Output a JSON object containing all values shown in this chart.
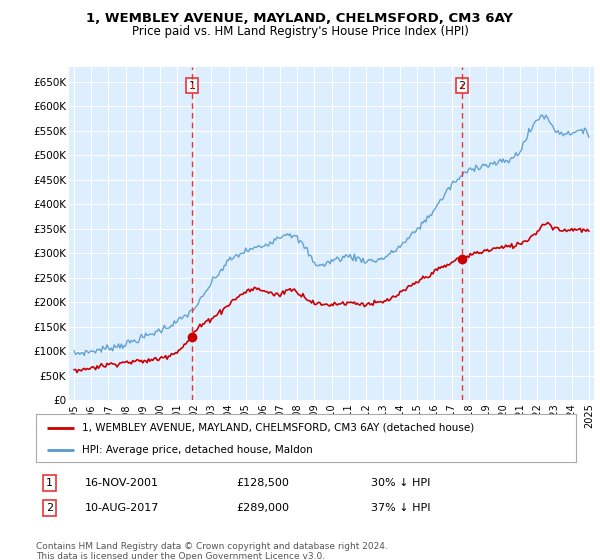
{
  "title": "1, WEMBLEY AVENUE, MAYLAND, CHELMSFORD, CM3 6AY",
  "subtitle": "Price paid vs. HM Land Registry's House Price Index (HPI)",
  "legend_label_red": "1, WEMBLEY AVENUE, MAYLAND, CHELMSFORD, CM3 6AY (detached house)",
  "legend_label_blue": "HPI: Average price, detached house, Maldon",
  "footnote": "Contains HM Land Registry data © Crown copyright and database right 2024.\nThis data is licensed under the Open Government Licence v3.0.",
  "sale1_date": "16-NOV-2001",
  "sale1_price": "£128,500",
  "sale1_hpi": "30% ↓ HPI",
  "sale2_date": "10-AUG-2017",
  "sale2_price": "£289,000",
  "sale2_hpi": "37% ↓ HPI",
  "ylim": [
    0,
    680000
  ],
  "yticks": [
    0,
    50000,
    100000,
    150000,
    200000,
    250000,
    300000,
    350000,
    400000,
    450000,
    500000,
    550000,
    600000,
    650000
  ],
  "ytick_labels": [
    "£0",
    "£50K",
    "£100K",
    "£150K",
    "£200K",
    "£250K",
    "£300K",
    "£350K",
    "£400K",
    "£450K",
    "£500K",
    "£550K",
    "£600K",
    "£650K"
  ],
  "xlim_start": 1994.7,
  "xlim_end": 2025.3,
  "vline1_x": 2001.88,
  "vline2_x": 2017.61,
  "sale1_dot_x": 2001.88,
  "sale1_dot_y": 128500,
  "sale2_dot_x": 2017.61,
  "sale2_dot_y": 289000,
  "plot_bg_color": "#ddeeff",
  "grid_color": "#ffffff",
  "red_color": "#cc0000",
  "blue_color": "#5599cc",
  "vline_color": "#ee3333",
  "fig_bg": "#ffffff"
}
